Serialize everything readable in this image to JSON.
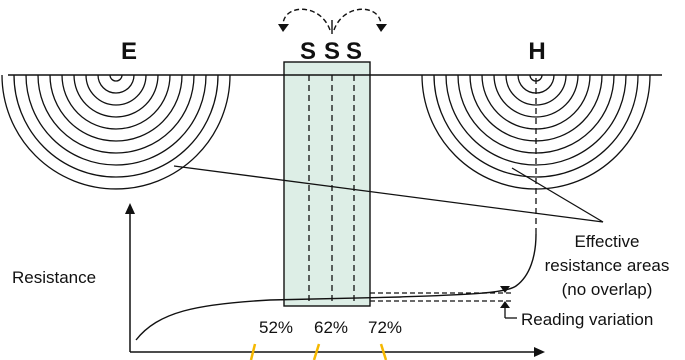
{
  "electrodes": {
    "earth_label": "E",
    "current_label": "H",
    "probe_labels": [
      "S",
      "S",
      "S"
    ]
  },
  "percentages": [
    "52%",
    "62%",
    "72%"
  ],
  "labels": {
    "resistance": "Resistance",
    "effective_line1": "Effective",
    "effective_line2": "resistance areas",
    "effective_line3": "(no overlap)",
    "reading_variation": "Reading variation"
  },
  "colors": {
    "stroke": "#111111",
    "highlight_fill": "#ddeee6",
    "percent_marker": "#f5b800"
  }
}
